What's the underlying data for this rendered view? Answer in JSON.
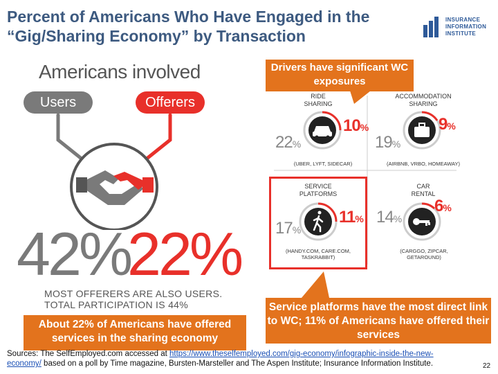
{
  "title": {
    "line1": "Percent of Americans Who Have Engaged in the",
    "line2": "“Gig/Sharing Economy” by Transaction"
  },
  "logo": {
    "line1": "INSURANCE",
    "line2": "INFORMATION",
    "line3": "INSTITUTE",
    "color": "#2e5a99"
  },
  "left_panel": {
    "heading": "Americans involved",
    "users_label": "Users",
    "offerers_label": "Offerers",
    "users_pct": "42%",
    "offerers_pct": "22%",
    "note_line1": "MOST OFFERERS ARE ALSO USERS.",
    "note_line2": "TOTAL PARTICIPATION IS 44%",
    "icon": "handshake-icon"
  },
  "callouts": {
    "top": "Drivers have significant WC exposures",
    "left": "About 22% of Americans have offered services in the sharing economy",
    "bottom": "Service platforms have the most direct link to WC; 11% of Americans have offered their services",
    "color": "#e3731d"
  },
  "quadrants": [
    {
      "title": "RIDE\nSHARING",
      "users": "22",
      "offerers": "10",
      "sub": "(UBER, LYFT, SIDECAR)",
      "icon": "car-icon"
    },
    {
      "title": "ACCOMMODATION\nSHARING",
      "users": "19",
      "offerers": "9",
      "sub": "(AIRBNB, VRBO, HOMEAWAY)",
      "icon": "suitcase-icon"
    },
    {
      "title": "SERVICE\nPLATFORMS",
      "users": "17",
      "offerers": "11",
      "sub": "(HANDY.COM, CARE.COM,\nTASKRABBIT)",
      "icon": "walking-person-icon"
    },
    {
      "title": "CAR\nRENTAL",
      "users": "14",
      "offerers": "6",
      "sub": "(CARGGO, ZIPCAR,\nGETAROUND)",
      "icon": "key-icon"
    }
  ],
  "percent_sign": "%",
  "sources": {
    "prefix": "Sources: The SelfEmployed.com accessed at ",
    "link": "https://www.theselfemployed.com/gig-economy/infographic-inside-the-new-economy/",
    "suffix": " based on a poll by Time magazine, Bursten-Marsteller and The Aspen Institute; Insurance Information Institute."
  },
  "page_number": "22",
  "colors": {
    "title": "#3d5a80",
    "red": "#e8302a",
    "gray": "#7a7a7a"
  }
}
